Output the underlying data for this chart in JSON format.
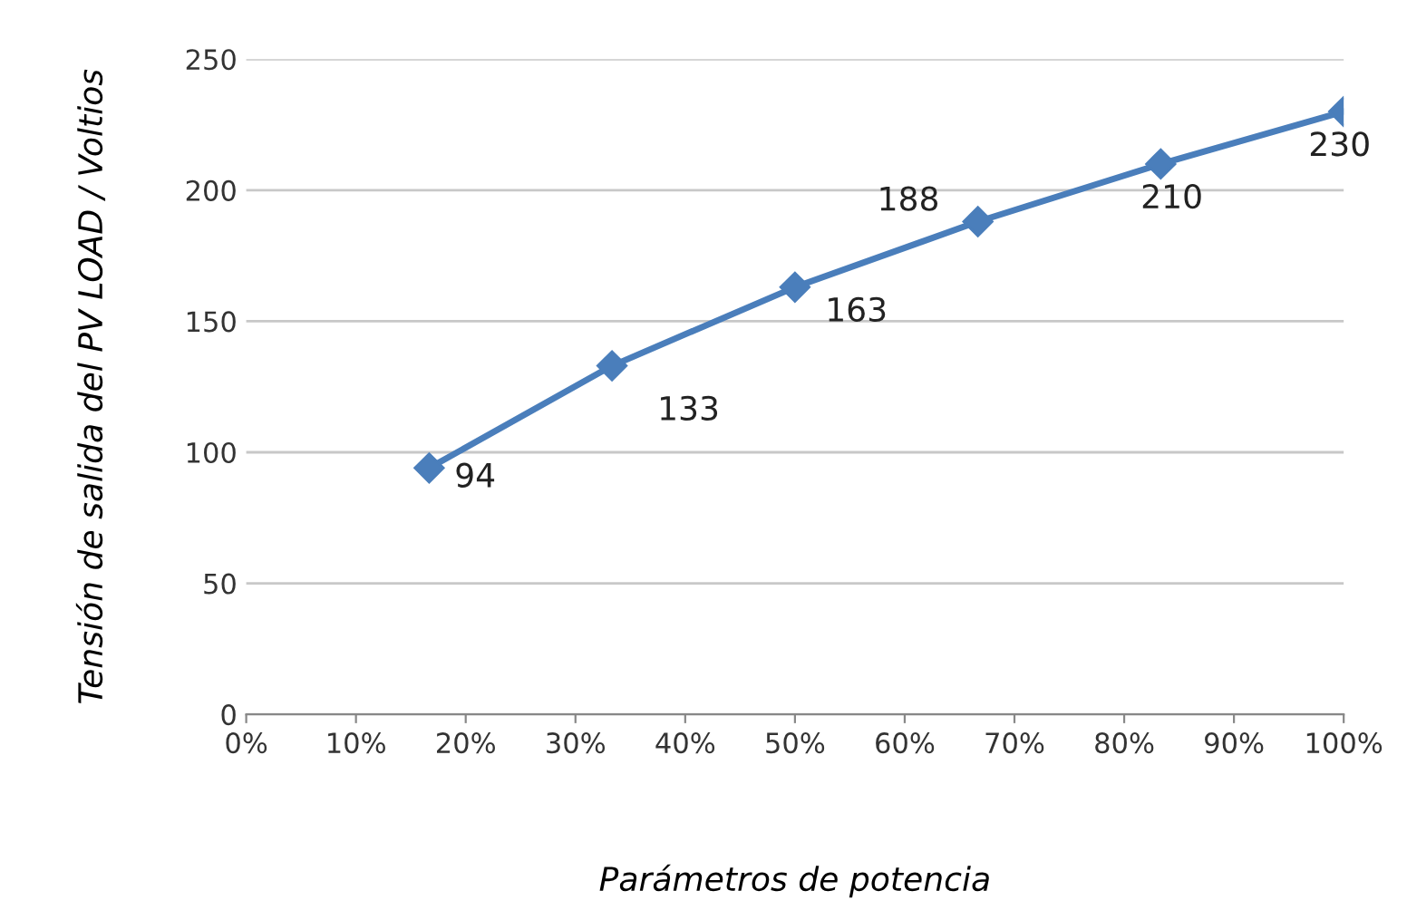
{
  "chart_data": {
    "type": "line",
    "xlabel": "Parámetros de potencia",
    "ylabel": "Tensión de salida del PV LOAD / Voltios",
    "x": [
      16.67,
      33.33,
      50,
      66.67,
      83.33,
      100
    ],
    "series": [
      {
        "color": "#4a7ebb",
        "values": [
          94,
          133,
          163,
          188,
          210,
          230
        ]
      }
    ],
    "xlim": [
      0,
      100
    ],
    "xticks": [
      {
        "value": 0,
        "label": "0%"
      },
      {
        "value": 10,
        "label": "10%"
      },
      {
        "value": 20,
        "label": "20%"
      },
      {
        "value": 30,
        "label": "30%"
      },
      {
        "value": 40,
        "label": "40%"
      },
      {
        "value": 50,
        "label": "50%"
      },
      {
        "value": 60,
        "label": "60%"
      },
      {
        "value": 70,
        "label": "70%"
      },
      {
        "value": 80,
        "label": "80%"
      },
      {
        "value": 90,
        "label": "90%"
      },
      {
        "value": 100,
        "label": "100%"
      }
    ],
    "ylim": [
      0,
      250
    ],
    "yticks": [
      0,
      50,
      100,
      150,
      200,
      250
    ],
    "grid": "y",
    "marker": "diamond",
    "line_style": "solid",
    "data_labels": true
  }
}
